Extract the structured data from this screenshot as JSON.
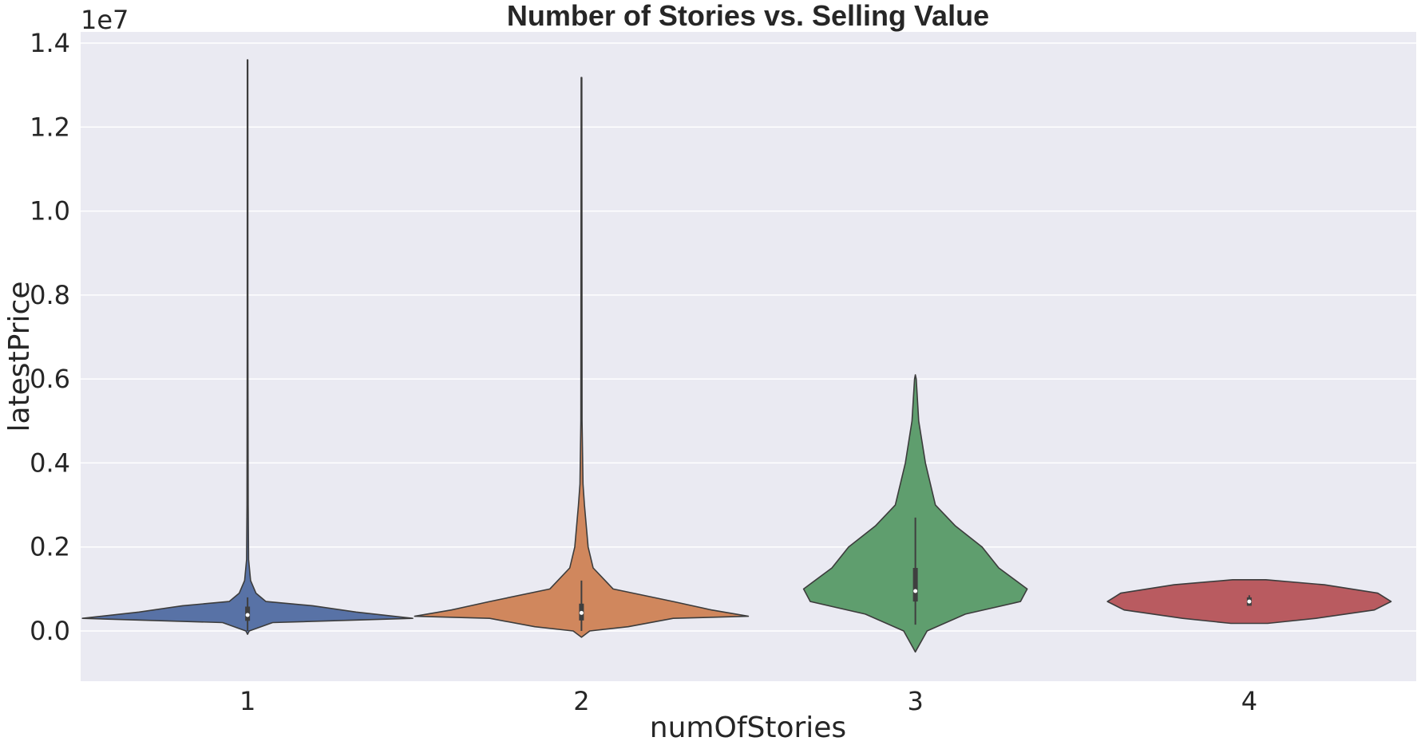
{
  "chart_data": {
    "type": "violin",
    "title": "Number of Stories vs. Selling Value",
    "xlabel": "numOfStories",
    "ylabel": "latestPrice",
    "y_offset_label": "1e7",
    "y_scale_factor": 10000000,
    "ylim": [
      -0.12,
      1.43
    ],
    "y_ticks": [
      0.0,
      0.2,
      0.4,
      0.6,
      0.8,
      1.0,
      1.2,
      1.4
    ],
    "y_tick_labels": [
      "0.0",
      "0.2",
      "0.4",
      "0.6",
      "0.8",
      "1.0",
      "1.2",
      "1.4"
    ],
    "grid": true,
    "legend": "none",
    "categories": [
      "1",
      "2",
      "3",
      "4"
    ],
    "series": [
      {
        "category": "1",
        "color": "#5872a6",
        "profile": [
          [
            -0.008,
            0.0
          ],
          [
            0.0,
            0.01
          ],
          [
            0.02,
            0.15
          ],
          [
            0.03,
            0.99
          ],
          [
            0.045,
            0.65
          ],
          [
            0.06,
            0.39
          ],
          [
            0.07,
            0.11
          ],
          [
            0.09,
            0.05
          ],
          [
            0.12,
            0.018
          ],
          [
            0.17,
            0.006
          ],
          [
            0.3,
            0.0035
          ],
          [
            0.7,
            0.002
          ],
          [
            1.36,
            0.0015
          ]
        ],
        "box_q1": 0.024,
        "box_q3": 0.058,
        "median": 0.038,
        "whisker_low": 0.0,
        "whisker_high": 0.08
      },
      {
        "category": "2",
        "color": "#d0875d",
        "profile": [
          [
            -0.015,
            0.0
          ],
          [
            0.0,
            0.05
          ],
          [
            0.01,
            0.28
          ],
          [
            0.03,
            0.55
          ],
          [
            0.035,
            1.0
          ],
          [
            0.05,
            0.78
          ],
          [
            0.07,
            0.55
          ],
          [
            0.1,
            0.19
          ],
          [
            0.15,
            0.07
          ],
          [
            0.2,
            0.04
          ],
          [
            0.3,
            0.018
          ],
          [
            0.35,
            0.009
          ],
          [
            0.5,
            0.0035
          ],
          [
            1.318,
            0.002
          ]
        ],
        "box_q1": 0.025,
        "box_q3": 0.065,
        "median": 0.043,
        "whisker_low": 0.0,
        "whisker_high": 0.12
      },
      {
        "category": "3",
        "color": "#5f9e6e",
        "profile": [
          [
            -0.05,
            0.0
          ],
          [
            0.0,
            0.07
          ],
          [
            0.04,
            0.3
          ],
          [
            0.07,
            0.63
          ],
          [
            0.1,
            0.67
          ],
          [
            0.15,
            0.5
          ],
          [
            0.2,
            0.4
          ],
          [
            0.25,
            0.24
          ],
          [
            0.3,
            0.12
          ],
          [
            0.4,
            0.06
          ],
          [
            0.5,
            0.02
          ],
          [
            0.6,
            0.005
          ],
          [
            0.61,
            0.0
          ]
        ],
        "box_q1": 0.07,
        "box_q3": 0.15,
        "median": 0.095,
        "whisker_low": 0.015,
        "whisker_high": 0.27
      },
      {
        "category": "4",
        "color": "#b95b60",
        "profile": [
          [
            0.018,
            0.11
          ],
          [
            0.03,
            0.4
          ],
          [
            0.05,
            0.75
          ],
          [
            0.07,
            0.85
          ],
          [
            0.09,
            0.77
          ],
          [
            0.11,
            0.45
          ],
          [
            0.122,
            0.1
          ]
        ],
        "box_q1": 0.06,
        "box_q3": 0.08,
        "median": 0.07,
        "whisker_low": 0.06,
        "whisker_high": 0.085
      }
    ]
  }
}
